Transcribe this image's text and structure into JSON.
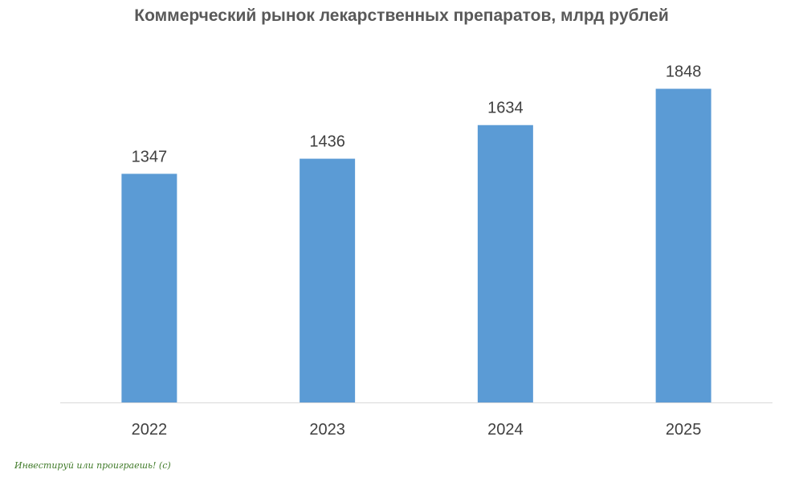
{
  "chart_data": {
    "type": "bar",
    "title": "Коммерческий рынок лекарственных препаратов, млрд рублей",
    "categories": [
      "2022",
      "2023",
      "2024",
      "2025"
    ],
    "values": [
      1347,
      1436,
      1634,
      1848
    ],
    "xlabel": "",
    "ylabel": "",
    "ylim": [
      0,
      2000
    ],
    "grid": false,
    "legend": "none",
    "bar_color": "#5b9bd5",
    "label_color": "#404040"
  },
  "watermark": "Инвестируй или проиграешь! (с)"
}
